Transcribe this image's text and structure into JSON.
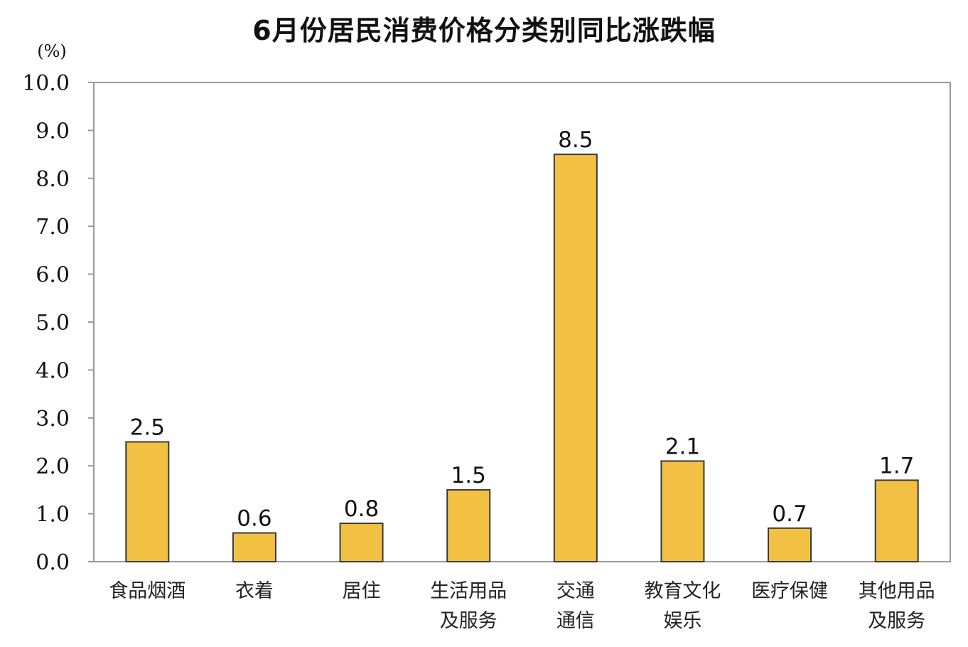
{
  "chart_data": {
    "type": "bar",
    "title": "6月份居民消费价格分类别同比涨跌幅",
    "ylabel": "(%)",
    "xlabel": "",
    "ylim": [
      0,
      10
    ],
    "yticks": [
      "0.0",
      "1.0",
      "2.0",
      "3.0",
      "4.0",
      "5.0",
      "6.0",
      "7.0",
      "8.0",
      "9.0",
      "10.0"
    ],
    "grid": false,
    "categories": [
      [
        "食品烟酒"
      ],
      [
        "衣着"
      ],
      [
        "居住"
      ],
      [
        "生活用品",
        "及服务"
      ],
      [
        "交通",
        "通信"
      ],
      [
        "教育文化",
        "娱乐"
      ],
      [
        "医疗保健"
      ],
      [
        "其他用品",
        "及服务"
      ]
    ],
    "values": [
      2.5,
      0.6,
      0.8,
      1.5,
      8.5,
      2.1,
      0.7,
      1.7
    ],
    "value_labels": [
      "2.5",
      "0.6",
      "0.8",
      "1.5",
      "8.5",
      "2.1",
      "0.7",
      "1.7"
    ],
    "bar_color": "#F2C143",
    "bar_edge_color": "#3a3a3a",
    "frame_color": "#9a9a9a"
  }
}
